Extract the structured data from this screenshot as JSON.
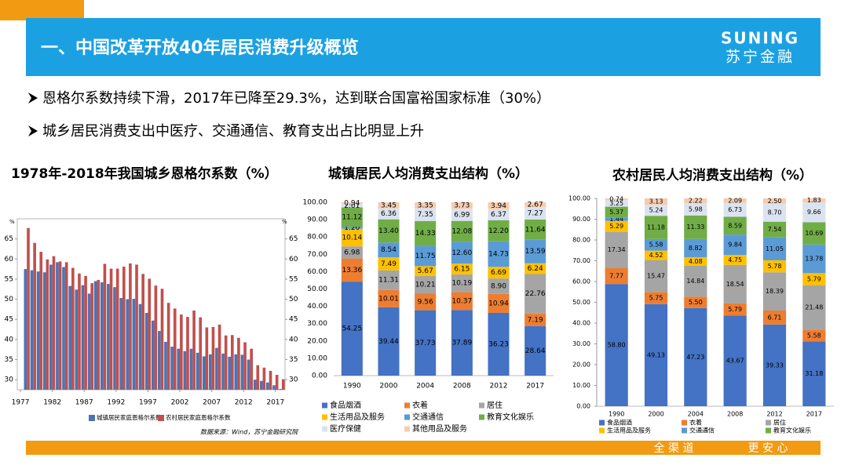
{
  "header": {
    "title": "一、中国改革开放40年居民消费升级概览",
    "logo_en": "SUNING",
    "logo_cn": "苏宁金融"
  },
  "bullets": [
    "恩格尔系数持续下滑，2017年已降至29.3%，达到联合国富裕国家标准（30%）",
    "城乡居民消费支出中医疗、交通通信、教育支出占比明显上升"
  ],
  "footer": {
    "left": "全 渠 道",
    "right": "更 安 心"
  },
  "chart_data": [
    {
      "type": "bar",
      "title": "1978年-2018年我国城乡恩格尔系数（%）",
      "ylabel": "%",
      "y2label": "%",
      "x": [
        1978,
        1979,
        1980,
        1981,
        1982,
        1983,
        1984,
        1985,
        1986,
        1987,
        1988,
        1989,
        1990,
        1991,
        1992,
        1993,
        1994,
        1995,
        1996,
        1997,
        1998,
        1999,
        2000,
        2001,
        2002,
        2003,
        2004,
        2005,
        2006,
        2007,
        2008,
        2009,
        2010,
        2011,
        2012,
        2013,
        2014,
        2015,
        2016,
        2017,
        2018
      ],
      "xlim": [
        1976.5,
        2018.5
      ],
      "xticks": [
        1977,
        1982,
        1987,
        1992,
        1997,
        2002,
        2007,
        2012,
        2017
      ],
      "ylim": [
        27.5,
        70
      ],
      "yticks": [
        30,
        35,
        40,
        45,
        50,
        55,
        60,
        65
      ],
      "y2lim": [
        27.5,
        70
      ],
      "y2ticks": [
        30,
        35,
        40,
        45,
        50,
        55,
        60,
        65
      ],
      "series": [
        {
          "name": "城镇居民家庭恩格尔系数",
          "color": "#4a74b4",
          "values": [
            57.5,
            57.2,
            56.9,
            56.7,
            58.6,
            59.2,
            58.0,
            53.3,
            52.4,
            53.5,
            51.4,
            54.5,
            54.2,
            53.8,
            53.0,
            50.3,
            50.0,
            50.1,
            48.8,
            46.6,
            44.7,
            42.1,
            39.4,
            38.2,
            37.7,
            37.1,
            37.7,
            36.7,
            35.8,
            36.3,
            37.9,
            36.5,
            35.7,
            36.3,
            36.2,
            35.0,
            30.0,
            29.7,
            29.3,
            28.6,
            27.7
          ]
        },
        {
          "name": "农村居民家庭恩格尔系数",
          "color": "#c0504d",
          "axis": "y2",
          "values": [
            67.7,
            64.0,
            61.8,
            59.9,
            60.7,
            59.4,
            59.2,
            57.8,
            56.4,
            55.8,
            54.0,
            54.8,
            58.8,
            57.6,
            57.6,
            58.1,
            58.9,
            58.6,
            56.3,
            55.1,
            53.4,
            52.6,
            49.1,
            47.7,
            46.2,
            45.6,
            47.2,
            45.5,
            43.0,
            43.1,
            43.7,
            41.0,
            41.1,
            40.4,
            39.3,
            37.7,
            33.6,
            33.0,
            32.2,
            31.2,
            30.1
          ]
        }
      ],
      "source": "数据来源：Wind，苏宁金融研究院"
    },
    {
      "type": "bar",
      "stacked": true,
      "title": "城镇居民人均消费支出结构（%）",
      "categories": [
        "1990",
        "2000",
        "2004",
        "2008",
        "2012",
        "2017"
      ],
      "ylim": [
        0,
        100
      ],
      "yticks": [
        {
          "value": 0,
          "label": "0.00"
        },
        {
          "value": 10,
          "label": "10.00"
        },
        {
          "value": 20,
          "label": "20.00"
        },
        {
          "value": 30,
          "label": "30.00"
        },
        {
          "value": 40,
          "label": "40.00"
        },
        {
          "value": 50,
          "label": "50.00"
        },
        {
          "value": 60,
          "label": "60.00"
        },
        {
          "value": 70,
          "label": "70.00"
        },
        {
          "value": 80,
          "label": "80.00"
        },
        {
          "value": 90,
          "label": "90.00"
        },
        {
          "value": 100,
          "label": "100.00"
        }
      ],
      "series": [
        {
          "name": "食品烟酒",
          "color": "#4472c4",
          "values": [
            54.25,
            39.44,
            37.73,
            37.89,
            36.23,
            28.64
          ],
          "value_labels": [
            "54.25",
            "39.44",
            "37.73",
            "37.89",
            "36.23",
            "28.64"
          ]
        },
        {
          "name": "衣着",
          "color": "#ed7d31",
          "values": [
            13.36,
            10.01,
            9.56,
            10.37,
            10.94,
            7.19
          ],
          "value_labels": [
            "13.36",
            "10.01",
            "9.56",
            "10.37",
            "10.94",
            "7.19"
          ]
        },
        {
          "name": "居住",
          "color": "#a5a5a5",
          "values": [
            6.98,
            11.31,
            10.21,
            10.19,
            8.9,
            22.76
          ],
          "value_labels": [
            "6.98",
            "11.31",
            "10.21",
            "10.19",
            "8.90",
            "22.76"
          ]
        },
        {
          "name": "生活用品及服务",
          "color": "#ffc000",
          "values": [
            10.14,
            7.49,
            5.67,
            6.15,
            6.69,
            6.24
          ],
          "value_labels": [
            "10.14",
            "7.49",
            "5.67",
            "6.15",
            "6.69",
            "6.24"
          ]
        },
        {
          "name": "交通通信",
          "color": "#5b9bd5",
          "values": [
            1.2,
            8.54,
            11.75,
            12.6,
            14.73,
            13.59
          ],
          "value_labels": [
            "1.20",
            "8.54",
            "11.75",
            "12.60",
            "14.73",
            "13.59"
          ]
        },
        {
          "name": "教育文化娱乐",
          "color": "#70ad47",
          "values": [
            11.12,
            13.4,
            14.33,
            12.08,
            12.2,
            11.64
          ],
          "value_labels": [
            "11.12",
            "13.40",
            "14.33",
            "12.08",
            "12.20",
            "11.64"
          ]
        },
        {
          "name": "医疗保健",
          "color": "#dbe3f0",
          "values": [
            2.01,
            6.36,
            7.35,
            6.99,
            6.37,
            7.27
          ],
          "value_labels": [
            "2.01",
            "6.36",
            "7.35",
            "6.99",
            "6.37",
            "7.27"
          ]
        },
        {
          "name": "其他用品及服务",
          "color": "#f8cbad",
          "values": [
            0.94,
            3.45,
            3.35,
            3.73,
            3.94,
            2.67
          ],
          "value_labels": [
            "0.94",
            "3.45",
            "3.35",
            "3.73",
            "3.94",
            "2.67"
          ]
        }
      ]
    },
    {
      "type": "bar",
      "stacked": true,
      "title": "农村居民人均消费支出结构（%）",
      "categories": [
        "1990",
        "2000",
        "2004",
        "2008",
        "2012",
        "2017"
      ],
      "ylim": [
        0,
        100
      ],
      "yticks": [
        {
          "value": 0,
          "label": "0.00"
        },
        {
          "value": 10,
          "label": "10.00"
        },
        {
          "value": 20,
          "label": "20.00"
        },
        {
          "value": 30,
          "label": "30.00"
        },
        {
          "value": 40,
          "label": "40.00"
        },
        {
          "value": 50,
          "label": "50.00"
        },
        {
          "value": 60,
          "label": "60.00"
        },
        {
          "value": 70,
          "label": "70.00"
        },
        {
          "value": 80,
          "label": "80.00"
        },
        {
          "value": 90,
          "label": "90.00"
        },
        {
          "value": 100,
          "label": "100.00"
        }
      ],
      "series": [
        {
          "name": "食品烟酒",
          "color": "#4472c4",
          "values": [
            58.8,
            49.13,
            47.23,
            43.67,
            39.33,
            31.18
          ],
          "value_labels": [
            "58.80",
            "49.13",
            "47.23",
            "43.67",
            "39.33",
            "31.18"
          ]
        },
        {
          "name": "衣着",
          "color": "#ed7d31",
          "values": [
            7.77,
            5.75,
            5.5,
            5.79,
            6.71,
            5.58
          ],
          "value_labels": [
            "7.77",
            "5.75",
            "5.50",
            "5.79",
            "6.71",
            "5.58"
          ]
        },
        {
          "name": "居住",
          "color": "#a5a5a5",
          "values": [
            17.34,
            15.47,
            14.84,
            18.54,
            18.39,
            21.48
          ],
          "value_labels": [
            "17.34",
            "15.47",
            "14.84",
            "18.54",
            "18.39",
            "21.48"
          ]
        },
        {
          "name": "生活用品及服务",
          "color": "#ffc000",
          "values": [
            5.29,
            4.52,
            4.08,
            4.75,
            5.78,
            5.79
          ],
          "value_labels": [
            "5.29",
            "4.52",
            "4.08",
            "4.75",
            "5.78",
            "5.79"
          ]
        },
        {
          "name": "交通通信",
          "color": "#5b9bd5",
          "values": [
            1.44,
            5.58,
            8.82,
            9.84,
            11.05,
            13.78
          ],
          "value_labels": [
            "1.44",
            "5.58",
            "8.82",
            "9.84",
            "11.05",
            "13.78"
          ]
        },
        {
          "name": "教育文化娱乐",
          "color": "#70ad47",
          "values": [
            5.37,
            11.18,
            11.33,
            8.59,
            7.54,
            10.69
          ],
          "value_labels": [
            "5.37",
            "11.18",
            "11.33",
            "8.59",
            "7.54",
            "10.69"
          ]
        },
        {
          "color": "#dbe3f0",
          "values": [
            3.25,
            5.24,
            5.98,
            6.73,
            8.7,
            9.66
          ],
          "value_labels": [
            "3.25",
            "5.24",
            "5.98",
            "6.73",
            "8.70",
            "9.66"
          ]
        },
        {
          "color": "#f8cbad",
          "values": [
            0.74,
            3.13,
            2.22,
            2.09,
            2.5,
            1.83
          ],
          "value_labels": [
            "0.74",
            "3.13",
            "2.22",
            "2.09",
            "2.50",
            "1.83"
          ]
        }
      ]
    }
  ]
}
